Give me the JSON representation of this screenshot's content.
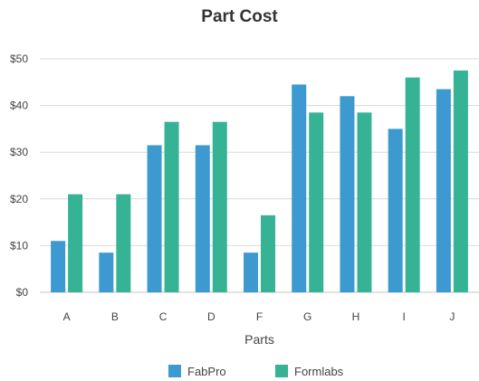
{
  "chart_data": {
    "type": "bar",
    "title": "Part Cost",
    "xlabel": "Parts",
    "ylabel": "",
    "categories": [
      "A",
      "B",
      "C",
      "D",
      "F",
      "G",
      "H",
      "I",
      "J"
    ],
    "series": [
      {
        "name": "FabPro",
        "color": "#3d9ad1",
        "values": [
          11,
          8.5,
          31.5,
          31.5,
          8.5,
          44.5,
          42,
          35,
          43.5
        ]
      },
      {
        "name": "Formlabs",
        "color": "#35b394",
        "values": [
          21,
          21,
          36.5,
          36.5,
          16.5,
          38.5,
          38.5,
          46,
          47.5
        ]
      }
    ],
    "ylim": [
      0,
      50
    ],
    "yticks": [
      0,
      10,
      20,
      30,
      40,
      50
    ],
    "ytick_labels": [
      "$0",
      "$10",
      "$20",
      "$30",
      "$40",
      "$50"
    ],
    "grid": true,
    "legend": "bottom"
  }
}
